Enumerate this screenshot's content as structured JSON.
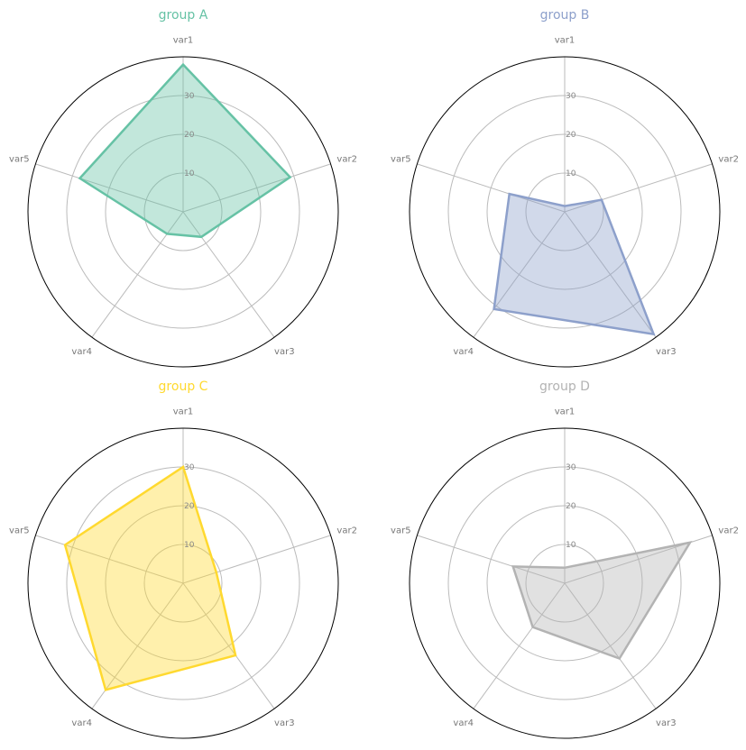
{
  "chart_data": [
    {
      "type": "radar",
      "title": "group A",
      "color": "#66c2a5",
      "categories": [
        "var1",
        "var2",
        "var3",
        "var4",
        "var5"
      ],
      "values": [
        38,
        29,
        8,
        7,
        28
      ],
      "rticks": [
        "10",
        "20",
        "30"
      ],
      "rlim": [
        0,
        40
      ]
    },
    {
      "type": "radar",
      "title": "group B",
      "color": "#8da0cb",
      "categories": [
        "var1",
        "var2",
        "var3",
        "var4",
        "var5"
      ],
      "values": [
        1.5,
        10,
        39,
        31,
        15
      ],
      "rticks": [
        "10",
        "20",
        "30"
      ],
      "rlim": [
        0,
        40
      ]
    },
    {
      "type": "radar",
      "title": "group C",
      "color": "#ffd92f",
      "categories": [
        "var1",
        "var2",
        "var3",
        "var4",
        "var5"
      ],
      "values": [
        30,
        9,
        23,
        34,
        32
      ],
      "rticks": [
        "10",
        "20",
        "30"
      ],
      "rlim": [
        0,
        40
      ]
    },
    {
      "type": "radar",
      "title": "group D",
      "color": "#b3b3b3",
      "categories": [
        "var1",
        "var2",
        "var3",
        "var4",
        "var5"
      ],
      "values": [
        4,
        34,
        24,
        14,
        14
      ],
      "rticks": [
        "10",
        "20",
        "30"
      ],
      "rlim": [
        0,
        40
      ]
    }
  ]
}
